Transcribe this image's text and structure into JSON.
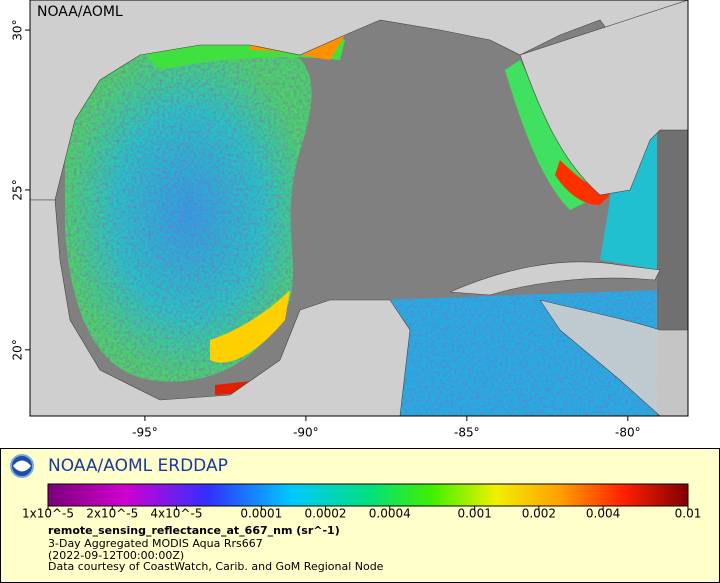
{
  "map": {
    "watermark": "NOAA/AOML",
    "xlim": [
      -98.57,
      -78.13
    ],
    "ylim": [
      17.93,
      30.94
    ],
    "xticks": [
      {
        "value": -95,
        "label": "-95°"
      },
      {
        "value": -90,
        "label": "-90°"
      },
      {
        "value": -85,
        "label": "-85°"
      },
      {
        "value": -80,
        "label": "-80°"
      }
    ],
    "yticks": [
      {
        "value": 20,
        "label": "20°"
      },
      {
        "value": 25,
        "label": "25°"
      },
      {
        "value": 30,
        "label": "30°"
      }
    ]
  },
  "legend": {
    "title": "NOAA/AOML ERDDAP",
    "colorbar": {
      "lim": [
        1e-05,
        0.01
      ],
      "log": true,
      "ticks": [
        {
          "value": 1e-05,
          "label": "1x10^-5"
        },
        {
          "value": 2e-05,
          "label": "2x10^-5"
        },
        {
          "value": 4e-05,
          "label": "4x10^-5"
        },
        0.0001,
        0.0002,
        0.0004,
        0.001,
        0.002,
        0.004,
        0.01
      ]
    },
    "variable": "remote_sensing_reflectance_at_667_nm (sr^-1)",
    "lines": [
      "3-Day Aggregated MODIS Aqua Rrs667",
      "(2022-09-12T00:00:00Z)",
      "Data courtesy of CoastWatch, Carib. and GoM Regional Node"
    ]
  }
}
